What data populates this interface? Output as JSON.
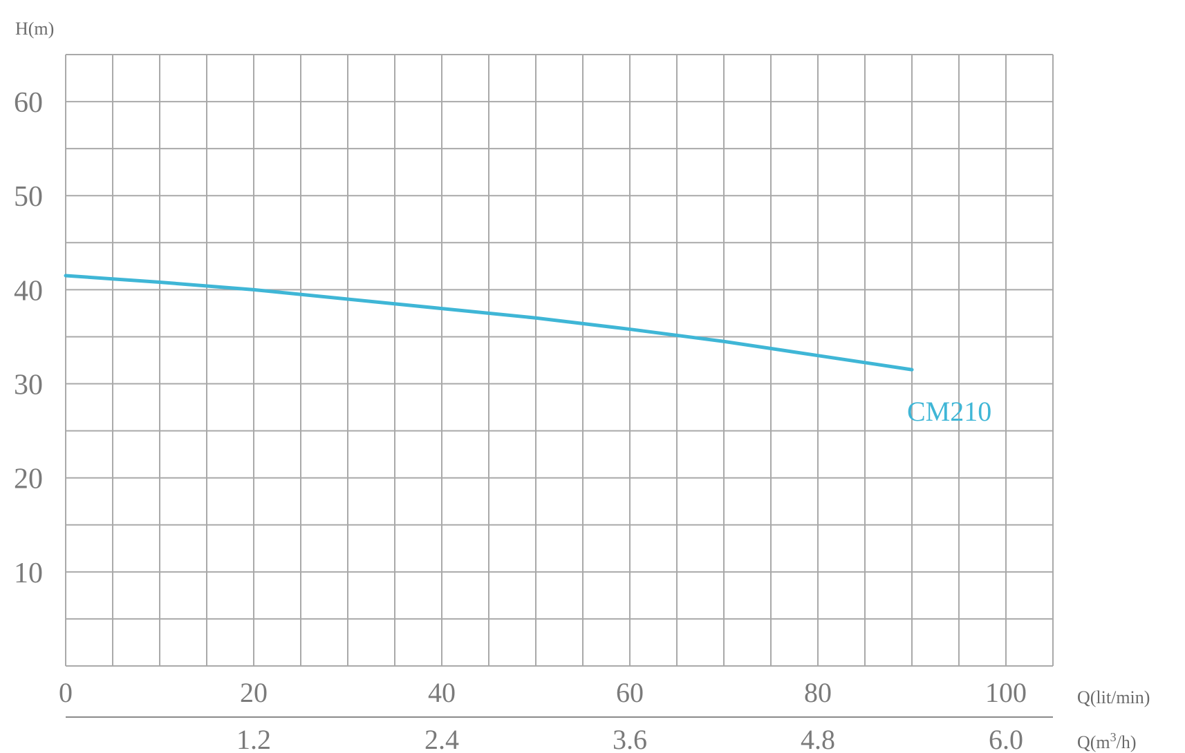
{
  "chart_data": {
    "type": "line",
    "ylabel": "H(m)",
    "xlabel": "Q(lit/min)",
    "x2label_prefix": "Q(m",
    "x2label_sup": "3",
    "x2label_suffix": "/h)",
    "xlim": [
      0,
      105
    ],
    "ylim": [
      0,
      65
    ],
    "x_grid_step": 5,
    "y_grid_step": 5,
    "grid": true,
    "yticks": [
      10,
      20,
      30,
      40,
      50,
      60
    ],
    "xticks": [
      0,
      20,
      40,
      60,
      80,
      100
    ],
    "x2ticks": [
      {
        "at": 20,
        "label": "1.2"
      },
      {
        "at": 40,
        "label": "2.4"
      },
      {
        "at": 60,
        "label": "3.6"
      },
      {
        "at": 80,
        "label": "4.8"
      },
      {
        "at": 100,
        "label": "6.0"
      }
    ],
    "series": [
      {
        "name": "CM210",
        "color": "#3fb6d6",
        "x": [
          0,
          10,
          20,
          30,
          40,
          50,
          60,
          70,
          80,
          90
        ],
        "y": [
          41.5,
          40.8,
          40.0,
          39.0,
          38.0,
          37.0,
          35.8,
          34.5,
          33.0,
          31.5
        ]
      }
    ]
  }
}
